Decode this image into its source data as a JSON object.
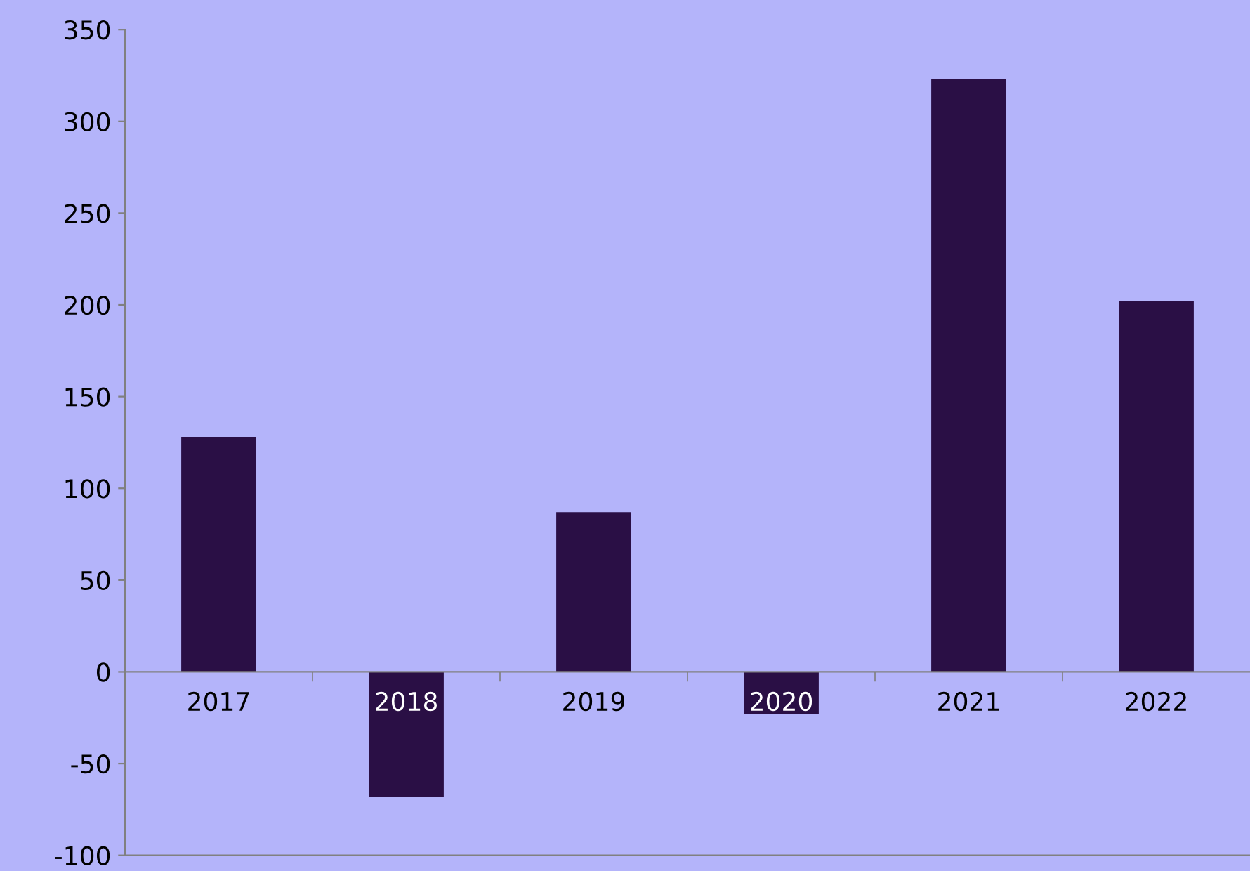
{
  "chart_data": {
    "type": "bar",
    "categories": [
      "2017",
      "2018",
      "2019",
      "2020",
      "2021",
      "2022"
    ],
    "values": [
      128,
      -68,
      87,
      -23,
      323,
      202
    ],
    "color": "#2a0f45",
    "ylim": [
      -100,
      350
    ],
    "yticks": [
      -100,
      -50,
      0,
      50,
      100,
      150,
      200,
      250,
      300,
      350
    ],
    "grid": false,
    "legend": false
  }
}
